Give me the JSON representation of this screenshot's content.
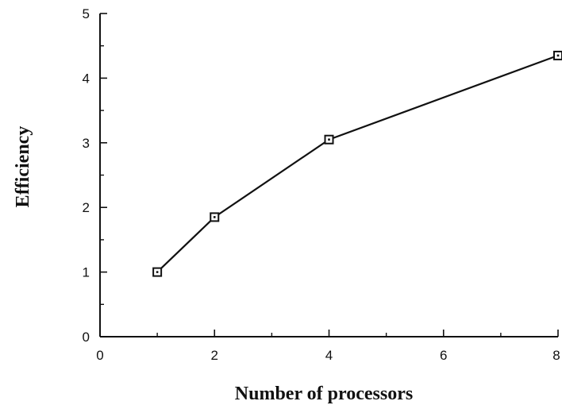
{
  "chart_data": {
    "type": "line",
    "title": "",
    "xlabel": "Number of processors",
    "ylabel": "Efficiency",
    "xlim": [
      0,
      8
    ],
    "ylim": [
      0,
      5
    ],
    "x_ticks": [
      0,
      2,
      4,
      6,
      8
    ],
    "y_ticks": [
      0,
      1,
      2,
      3,
      4,
      5
    ],
    "grid": false,
    "legend": "none",
    "series": [
      {
        "marker": "square-with-dot",
        "color": "#111111",
        "x": [
          1,
          2,
          4,
          8
        ],
        "y": [
          1.0,
          1.85,
          3.05,
          4.35
        ]
      }
    ]
  }
}
